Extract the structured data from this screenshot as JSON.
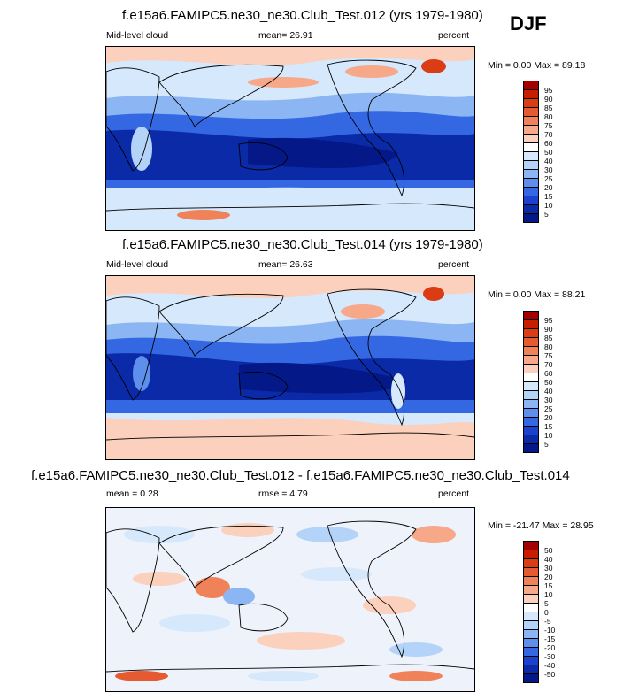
{
  "season": "DJF",
  "panels": [
    {
      "title": "f.e15a6.FAMIPC5.ne30_ne30.Club_Test.012 (yrs 1979-1980)",
      "left_label": "Mid-level cloud",
      "mid_label": "mean=  26.91",
      "right_label": "percent",
      "minmax": "Min =   0.00 Max =  89.18",
      "colorbar": {
        "labels": [
          "95",
          "90",
          "85",
          "80",
          "75",
          "70",
          "60",
          "50",
          "40",
          "30",
          "25",
          "20",
          "15",
          "10",
          "5"
        ],
        "colors": [
          "#a50000",
          "#c81e00",
          "#dc3c14",
          "#e65a32",
          "#f0825a",
          "#f6a888",
          "#fbd0bd",
          "#ffffff",
          "#d6e8fb",
          "#b4d3f8",
          "#8cb5f3",
          "#5f8fec",
          "#3468e2",
          "#1a42cc",
          "#0a2aa8",
          "#051888"
        ]
      }
    },
    {
      "title": "f.e15a6.FAMIPC5.ne30_ne30.Club_Test.014 (yrs 1979-1980)",
      "left_label": "Mid-level cloud",
      "mid_label": "mean=  26.63",
      "right_label": "percent",
      "minmax": "Min =   0.00 Max =  88.21",
      "colorbar": {
        "labels": [
          "95",
          "90",
          "85",
          "80",
          "75",
          "70",
          "60",
          "50",
          "40",
          "30",
          "25",
          "20",
          "15",
          "10",
          "5"
        ],
        "colors": [
          "#a50000",
          "#c81e00",
          "#dc3c14",
          "#e65a32",
          "#f0825a",
          "#f6a888",
          "#fbd0bd",
          "#ffffff",
          "#d6e8fb",
          "#b4d3f8",
          "#8cb5f3",
          "#5f8fec",
          "#3468e2",
          "#1a42cc",
          "#0a2aa8",
          "#051888"
        ]
      }
    },
    {
      "title": "f.e15a6.FAMIPC5.ne30_ne30.Club_Test.012 - f.e15a6.FAMIPC5.ne30_ne30.Club_Test.014",
      "left_label": "mean =   0.28",
      "mid_label": "rmse =   4.79",
      "right_label": "percent",
      "minmax": "Min = -21.47 Max =  28.95",
      "colorbar": {
        "labels": [
          "50",
          "40",
          "30",
          "20",
          "15",
          "10",
          "5",
          "0",
          "-5",
          "-10",
          "-15",
          "-20",
          "-30",
          "-40",
          "-50"
        ],
        "colors": [
          "#a50000",
          "#c81e00",
          "#dc3c14",
          "#e65a32",
          "#f0825a",
          "#f6a888",
          "#fbd0bd",
          "#ffffff",
          "#d6e8fb",
          "#b4d3f8",
          "#8cb5f3",
          "#5f8fec",
          "#3468e2",
          "#1a42cc",
          "#0a2aa8",
          "#051888"
        ]
      }
    }
  ],
  "chart_data": [
    {
      "type": "heatmap",
      "title": "f.e15a6.FAMIPC5.ne30_ne30.Club_Test.012 (yrs 1979-1980)",
      "variable": "Mid-level cloud",
      "units": "percent",
      "mean": 26.91,
      "min": 0.0,
      "max": 89.18,
      "levels": [
        5,
        10,
        15,
        20,
        25,
        30,
        40,
        50,
        60,
        70,
        75,
        80,
        85,
        90,
        95
      ]
    },
    {
      "type": "heatmap",
      "title": "f.e15a6.FAMIPC5.ne30_ne30.Club_Test.014 (yrs 1979-1980)",
      "variable": "Mid-level cloud",
      "units": "percent",
      "mean": 26.63,
      "min": 0.0,
      "max": 88.21,
      "levels": [
        5,
        10,
        15,
        20,
        25,
        30,
        40,
        50,
        60,
        70,
        75,
        80,
        85,
        90,
        95
      ]
    },
    {
      "type": "heatmap",
      "title": "f.e15a6.FAMIPC5.ne30_ne30.Club_Test.012 - f.e15a6.FAMIPC5.ne30_ne30.Club_Test.014",
      "units": "percent",
      "mean": 0.28,
      "rmse": 4.79,
      "min": -21.47,
      "max": 28.95,
      "levels": [
        -50,
        -40,
        -30,
        -20,
        -15,
        -10,
        -5,
        0,
        5,
        10,
        15,
        20,
        30,
        40,
        50
      ]
    }
  ]
}
